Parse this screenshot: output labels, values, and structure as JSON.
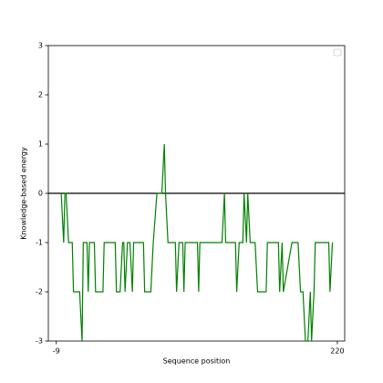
{
  "chart_data": {
    "type": "line",
    "xlabel": "Sequence position",
    "ylabel": "Knowledge-based energy",
    "x": [
      -5,
      -3,
      -2,
      -1,
      1,
      4,
      5,
      10,
      12,
      13,
      16,
      17,
      18,
      22,
      23,
      29,
      30,
      39,
      40,
      43,
      45,
      46,
      47,
      49,
      51,
      53,
      54,
      62,
      63,
      68,
      70,
      73,
      77,
      79,
      80,
      82,
      88,
      89,
      91,
      94,
      95,
      96,
      106,
      107,
      108,
      126,
      128,
      129,
      137,
      138,
      140,
      143,
      144,
      146,
      147,
      149,
      153,
      155,
      162,
      163,
      172,
      173,
      175,
      176,
      183,
      188,
      190,
      192,
      194,
      196,
      198,
      199,
      201,
      202,
      213,
      214,
      216
    ],
    "series": [
      {
        "color": "#008000",
        "values": [
          0,
          -1,
          0,
          0,
          -1,
          -1,
          -2,
          -2,
          -3,
          -1,
          -1,
          -2,
          -1,
          -1,
          -2,
          -2,
          -1,
          -1,
          -2,
          -2,
          -1,
          -1,
          -2,
          -1,
          -1,
          -2,
          -1,
          -1,
          -2,
          -2,
          -1,
          0,
          0,
          1,
          0,
          -1,
          -1,
          -2,
          -1,
          -1,
          -2,
          -1,
          -1,
          -2,
          -1,
          -1,
          0,
          -1,
          -1,
          -2,
          -1,
          -1,
          0,
          -1,
          0,
          -1,
          -1,
          -2,
          -2,
          -1,
          -1,
          -2,
          -1,
          -2,
          -1,
          -1,
          -2,
          -2,
          -3,
          -3,
          -2,
          -3,
          -2,
          -1,
          -1,
          -2,
          -1
        ]
      }
    ],
    "reference_line": 0,
    "reference_color": "#000000",
    "xlim": [
      -15.5,
      226
    ],
    "ylim": [
      -3,
      3
    ],
    "xticks": [
      -9,
      220
    ],
    "yticks": [
      -3,
      -2,
      -1,
      0,
      1,
      2,
      3
    ],
    "legend": "upper right",
    "grid": false
  }
}
